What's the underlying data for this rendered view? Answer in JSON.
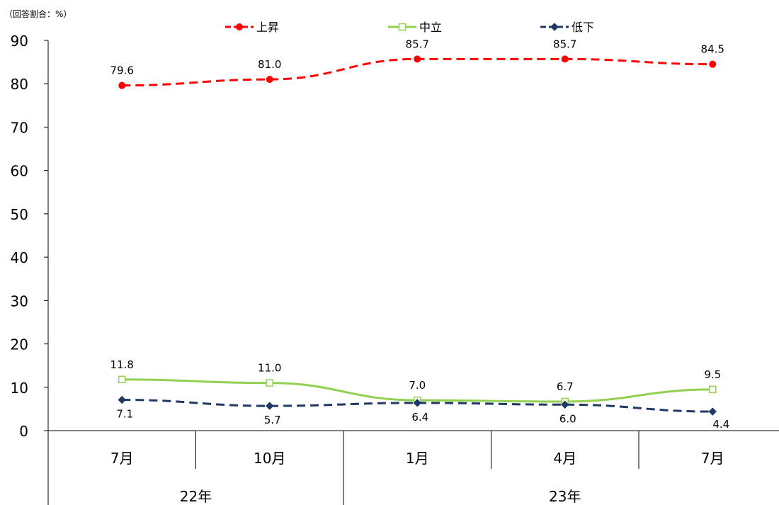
{
  "chart_data": {
    "type": "line",
    "unit_label": "（回答割合：%）",
    "categories": [
      "7月",
      "10月",
      "1月",
      "4月",
      "7月"
    ],
    "year_groups": [
      {
        "label": "22年",
        "span": 2
      },
      {
        "label": "23年",
        "span": 3
      }
    ],
    "ylim": [
      0,
      90
    ],
    "yticks": [
      0,
      10,
      20,
      30,
      40,
      50,
      60,
      70,
      80,
      90
    ],
    "legend_position": "top",
    "grid": false,
    "series": [
      {
        "name": "上昇",
        "values": [
          79.6,
          81.0,
          85.7,
          85.7,
          84.5
        ],
        "labels": [
          "79.6",
          "81.0",
          "85.7",
          "85.7",
          "84.5"
        ],
        "color": "#FF0000",
        "line": "dashed",
        "marker": "circle"
      },
      {
        "name": "中立",
        "values": [
          11.8,
          11.0,
          7.0,
          6.7,
          9.5
        ],
        "labels": [
          "11.8",
          "11.0",
          "7.0",
          "6.7",
          "9.5"
        ],
        "color": "#92D050",
        "line": "solid",
        "marker": "hollow-square"
      },
      {
        "name": "低下",
        "values": [
          7.1,
          5.7,
          6.4,
          6.0,
          4.4
        ],
        "labels": [
          "7.1",
          "5.7",
          "6.4",
          "6.0",
          "4.4"
        ],
        "color": "#1F3864",
        "line": "dashed",
        "marker": "diamond"
      }
    ]
  }
}
